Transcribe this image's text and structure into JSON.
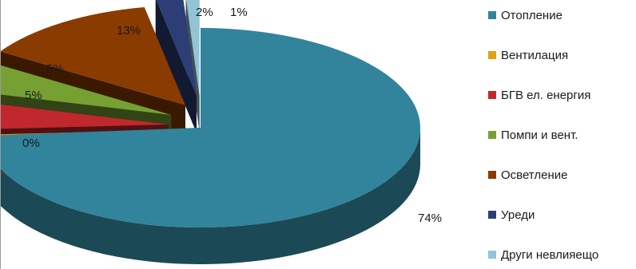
{
  "chart_data": {
    "type": "pie",
    "title": "",
    "legend_position": "right",
    "three_d": true,
    "exploded": true,
    "slices": [
      {
        "name": "Отопление",
        "value": 74,
        "label": "74%",
        "color": "#31849b"
      },
      {
        "name": "Вентилация",
        "value": 0.4,
        "label": "0%",
        "color": "#e0a010"
      },
      {
        "name": "БГВ ел. енергия",
        "value": 5,
        "label": "5%",
        "color": "#c0282d"
      },
      {
        "name": "Помпи и вент.",
        "value": 5,
        "label": "5%",
        "color": "#77a033"
      },
      {
        "name": "Осветление",
        "value": 13,
        "label": "13%",
        "color": "#8a3b00"
      },
      {
        "name": "Уреди",
        "value": 2,
        "label": "2%",
        "color": "#2c3e75"
      },
      {
        "name": "Други невлияещо",
        "value": 1,
        "label": "1%",
        "color": "#93c4d6"
      }
    ]
  }
}
